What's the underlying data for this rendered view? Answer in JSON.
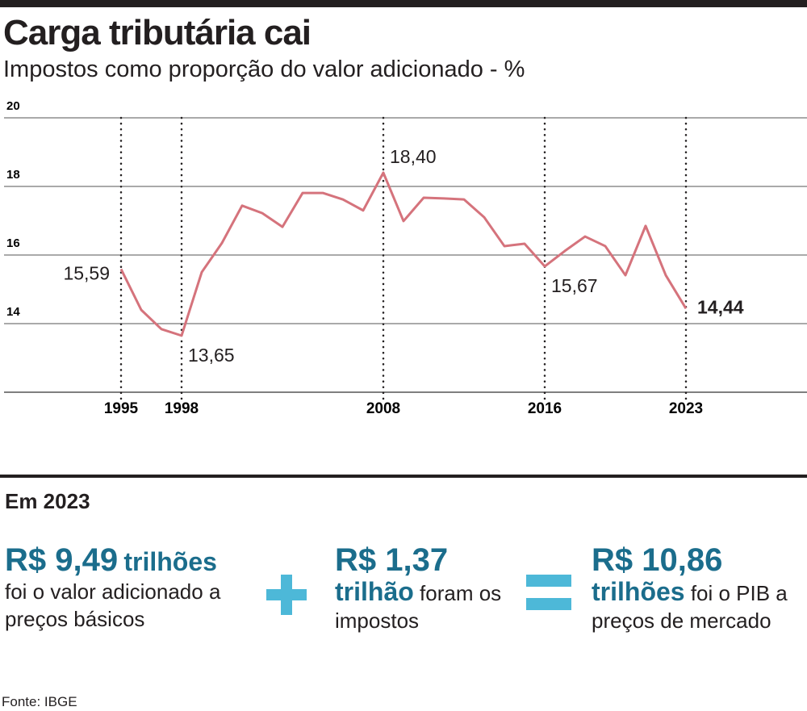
{
  "chart_data": {
    "type": "line",
    "title": "Carga tributária cai",
    "subtitle": "Impostos como proporção do valor adicionado - %",
    "x": [
      1995,
      1996,
      1997,
      1998,
      1999,
      2000,
      2001,
      2002,
      2003,
      2004,
      2005,
      2006,
      2007,
      2008,
      2009,
      2010,
      2011,
      2012,
      2013,
      2014,
      2015,
      2016,
      2017,
      2018,
      2019,
      2020,
      2021,
      2022,
      2023
    ],
    "series": [
      {
        "color": "#d5737c",
        "values": [
          15.59,
          14.4,
          13.84,
          13.65,
          15.5,
          16.35,
          17.44,
          17.22,
          16.82,
          17.81,
          17.81,
          17.62,
          17.3,
          18.4,
          16.99,
          17.67,
          17.65,
          17.62,
          17.1,
          16.26,
          16.33,
          15.67,
          16.12,
          16.54,
          16.26,
          15.41,
          16.85,
          15.41,
          14.44
        ],
        "value_labels": [
          "15,59",
          null,
          null,
          "13,65",
          null,
          null,
          null,
          null,
          null,
          null,
          null,
          null,
          null,
          "18,40",
          null,
          null,
          null,
          null,
          null,
          null,
          null,
          "15,67",
          null,
          null,
          null,
          null,
          null,
          null,
          "14,44"
        ]
      }
    ],
    "xlim": [
      1989,
      2029
    ],
    "xticks": [
      1995,
      1998,
      2008,
      2016,
      2023
    ],
    "ylim": [
      12,
      20
    ],
    "yticks": [
      14,
      16,
      18,
      20
    ],
    "grid": true
  },
  "summary": {
    "heading": "Em 2023",
    "items": [
      {
        "amount": "R$ 9,49",
        "unit": "trilhões",
        "text": "foi o valor adicionado a preços básicos"
      },
      {
        "amount": "R$ 1,37",
        "unit": "trilhão",
        "text": "foram os impostos"
      },
      {
        "amount": "R$ 10,86",
        "unit": "trilhões",
        "text": "foi o PIB a preços de mercado"
      }
    ]
  },
  "source": "Fonte: IBGE"
}
